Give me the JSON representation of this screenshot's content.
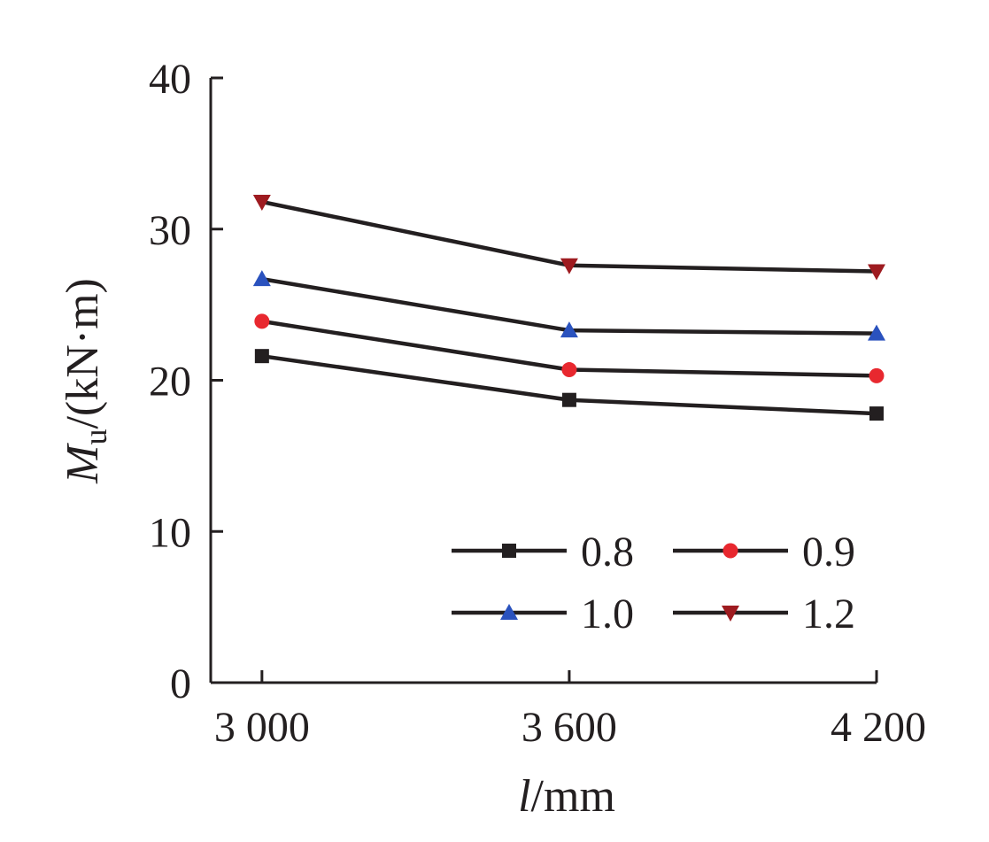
{
  "chart_data": {
    "type": "line",
    "title": "",
    "xlabel": {
      "italic": "l",
      "rest": "/mm"
    },
    "ylabel": {
      "italic": "M",
      "sub": "u",
      "rest": "/(kN·m)"
    },
    "x": [
      3000,
      3600,
      4200
    ],
    "x_tick_labels": [
      "3 000",
      "3 600",
      "4 200"
    ],
    "y_ticks": [
      0,
      10,
      20,
      30,
      40
    ],
    "y_tick_labels": [
      "0",
      "10",
      "20",
      "30",
      "40"
    ],
    "xlim": [
      2900,
      4200
    ],
    "ylim": [
      0,
      40
    ],
    "grid": false,
    "legend_position": "bottom-right",
    "line_color": "#231f20",
    "series": [
      {
        "name": "0.8",
        "marker": "square",
        "marker_color": "#231f20",
        "values": [
          21.6,
          18.7,
          17.8
        ]
      },
      {
        "name": "0.9",
        "marker": "circle",
        "marker_color": "#e8282f",
        "values": [
          23.9,
          20.7,
          20.3
        ]
      },
      {
        "name": "1.0",
        "marker": "triangle-up",
        "marker_color": "#2a52be",
        "values": [
          26.7,
          23.3,
          23.1
        ]
      },
      {
        "name": "1.2",
        "marker": "triangle-down",
        "marker_color": "#9e1b20",
        "values": [
          31.8,
          27.6,
          27.2
        ]
      }
    ]
  }
}
